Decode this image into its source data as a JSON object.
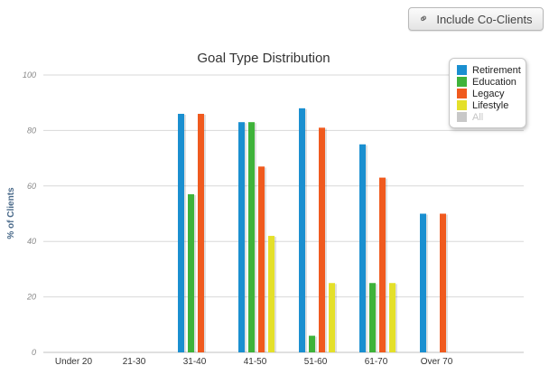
{
  "button": {
    "label": "Include Co-Clients",
    "icon": "link-icon"
  },
  "chart_data": {
    "type": "bar",
    "title": "Goal Type Distribution",
    "xlabel": "",
    "ylabel": "% of Clients",
    "ylim": [
      0,
      100
    ],
    "yticks": [
      0,
      20,
      40,
      60,
      80,
      100
    ],
    "grid": true,
    "legend_position": "top-right",
    "categories": [
      "Under 20",
      "21-30",
      "31-40",
      "41-50",
      "51-60",
      "61-70",
      "Over 70"
    ],
    "series": [
      {
        "name": "Retirement",
        "color": "#1a8fd0",
        "values": [
          0,
          0,
          86,
          83,
          88,
          75,
          50
        ]
      },
      {
        "name": "Education",
        "color": "#3fb33a",
        "values": [
          0,
          0,
          57,
          83,
          6,
          25,
          0
        ]
      },
      {
        "name": "Legacy",
        "color": "#f05a1e",
        "values": [
          0,
          0,
          86,
          67,
          81,
          63,
          50
        ]
      },
      {
        "name": "Lifestyle",
        "color": "#e4e02a",
        "values": [
          0,
          0,
          0,
          42,
          25,
          25,
          0
        ]
      },
      {
        "name": "All",
        "color": "#c8c8c8",
        "values": [
          0,
          0,
          0,
          0,
          0,
          0,
          0
        ],
        "hidden": true
      }
    ]
  }
}
